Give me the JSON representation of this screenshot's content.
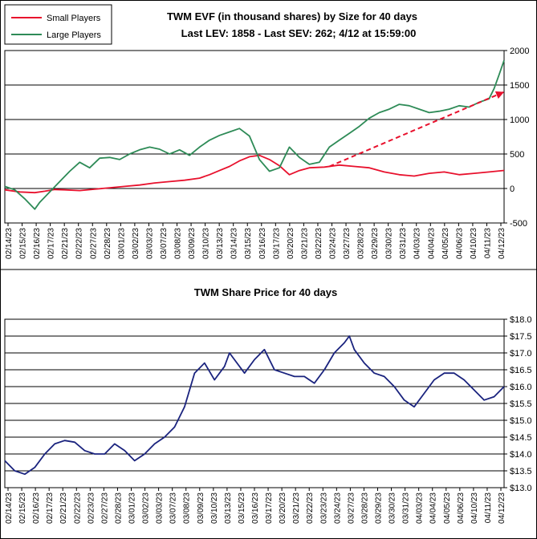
{
  "chart_data": [
    {
      "type": "line",
      "title": "TWM EVF (in thousand shares) by Size for 40 days",
      "subtitle": "Last LEV: 1858 - Last SEV: 262; 4/12 at 15:59:00",
      "xlabel": "",
      "ylabel": "",
      "ylim": [
        -500,
        2000
      ],
      "yticks": [
        -500,
        0,
        500,
        1000,
        1500,
        2000
      ],
      "grid": true,
      "legend_position": "top-left",
      "x_tick_labels": [
        "02/14/23",
        "02/15/23",
        "02/16/23",
        "02/17/23",
        "02/21/23",
        "02/22/23",
        "02/27/23",
        "02/28/23",
        "03/01/23",
        "03/02/23",
        "03/03/23",
        "03/07/23",
        "03/08/23",
        "03/09/23",
        "03/10/23",
        "03/13/23",
        "03/14/23",
        "03/15/23",
        "03/16/23",
        "03/17/23",
        "03/20/23",
        "03/21/23",
        "03/22/23",
        "03/24/23",
        "03/27/23",
        "03/28/23",
        "03/29/23",
        "03/30/23",
        "03/31/23",
        "04/03/23",
        "04/04/23",
        "04/05/23",
        "04/06/23",
        "04/10/23",
        "04/11/23",
        "04/12/23"
      ],
      "x_range": [
        0,
        100
      ],
      "series": [
        {
          "name": "Small Players",
          "color": "#e8112d",
          "x": [
            0,
            3,
            6,
            8,
            10,
            12,
            15,
            18,
            21,
            24,
            27,
            30,
            33,
            36,
            39,
            41,
            43,
            45,
            47,
            49,
            51,
            53,
            55,
            57,
            59,
            61,
            64,
            67,
            70,
            73,
            76,
            79,
            82,
            85,
            88,
            91,
            94,
            97,
            100
          ],
          "y": [
            -20,
            -50,
            -60,
            -40,
            -15,
            -20,
            -30,
            -10,
            10,
            30,
            50,
            80,
            100,
            120,
            150,
            200,
            260,
            320,
            400,
            460,
            480,
            420,
            330,
            200,
            260,
            300,
            310,
            340,
            320,
            300,
            240,
            200,
            180,
            220,
            240,
            200,
            220,
            240,
            262
          ]
        },
        {
          "name": "Large Players",
          "color": "#2e8b57",
          "x": [
            0,
            2,
            4,
            6,
            7,
            9,
            11,
            13,
            15,
            17,
            19,
            21,
            23,
            25,
            27,
            29,
            31,
            33,
            35,
            37,
            39,
            41,
            43,
            45,
            47,
            49,
            51,
            53,
            55,
            57,
            59,
            61,
            63,
            65,
            67,
            69,
            71,
            73,
            75,
            77,
            79,
            81,
            83,
            85,
            87,
            89,
            91,
            93,
            95,
            97,
            98,
            99,
            100
          ],
          "y": [
            30,
            -20,
            -150,
            -300,
            -200,
            -50,
            100,
            250,
            380,
            300,
            440,
            450,
            420,
            500,
            560,
            600,
            570,
            500,
            560,
            480,
            600,
            700,
            770,
            820,
            870,
            760,
            420,
            250,
            300,
            600,
            450,
            350,
            380,
            600,
            700,
            800,
            900,
            1020,
            1100,
            1150,
            1220,
            1200,
            1150,
            1100,
            1120,
            1150,
            1200,
            1180,
            1250,
            1300,
            1450,
            1650,
            1858
          ]
        },
        {
          "name": "",
          "color": "#e8112d",
          "dashed": true,
          "x": [
            65,
            100
          ],
          "y": [
            320,
            1400
          ]
        }
      ]
    },
    {
      "type": "line",
      "title": "TWM Share Price for 40 days",
      "xlabel": "",
      "ylabel": "",
      "ylim": [
        13.0,
        18.0
      ],
      "yticks": [
        "$13.0",
        "$13.5",
        "$14.0",
        "$14.5",
        "$15.0",
        "$15.5",
        "$16.0",
        "$16.5",
        "$17.0",
        "$17.5",
        "$18.0"
      ],
      "grid": true,
      "x_tick_labels": [
        "02/14/23",
        "02/15/23",
        "02/16/23",
        "02/17/23",
        "02/21/23",
        "02/22/23",
        "02/23/23",
        "02/27/23",
        "02/28/23",
        "03/01/23",
        "03/02/23",
        "03/03/23",
        "03/07/23",
        "03/08/23",
        "03/09/23",
        "03/10/23",
        "03/13/23",
        "03/15/23",
        "03/16/23",
        "03/17/23",
        "03/20/23",
        "03/21/23",
        "03/22/23",
        "03/23/23",
        "03/24/23",
        "03/27/23",
        "03/28/23",
        "03/29/23",
        "03/30/23",
        "03/31/23",
        "04/03/23",
        "04/04/23",
        "04/05/23",
        "04/06/23",
        "04/10/23",
        "04/11/23",
        "04/12/23"
      ],
      "x_range": [
        0,
        100
      ],
      "series": [
        {
          "name": "",
          "color": "#1a237e",
          "x": [
            0,
            2,
            4,
            6,
            8,
            10,
            12,
            14,
            16,
            18,
            20,
            22,
            24,
            26,
            28,
            30,
            32,
            34,
            36,
            38,
            40,
            42,
            44,
            45,
            46,
            48,
            50,
            52,
            54,
            56,
            58,
            60,
            62,
            64,
            66,
            68,
            69,
            70,
            72,
            74,
            76,
            78,
            80,
            82,
            84,
            86,
            88,
            90,
            92,
            94,
            96,
            98,
            100
          ],
          "y": [
            13.8,
            13.5,
            13.4,
            13.6,
            14.0,
            14.3,
            14.4,
            14.35,
            14.1,
            14.0,
            14.0,
            14.3,
            14.1,
            13.8,
            14.0,
            14.3,
            14.5,
            14.8,
            15.4,
            16.4,
            16.7,
            16.2,
            16.6,
            17.0,
            16.8,
            16.4,
            16.8,
            17.1,
            16.5,
            16.4,
            16.3,
            16.3,
            16.1,
            16.5,
            17.0,
            17.3,
            17.5,
            17.1,
            16.7,
            16.4,
            16.3,
            16.0,
            15.6,
            15.4,
            15.8,
            16.2,
            16.4,
            16.4,
            16.2,
            15.9,
            15.6,
            15.7,
            16.0
          ]
        }
      ]
    }
  ]
}
